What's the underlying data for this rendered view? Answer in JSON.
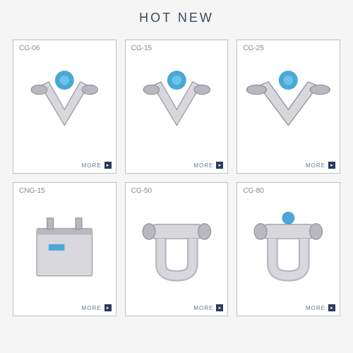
{
  "title": "HOT NEW",
  "more_label": "MORE",
  "colors": {
    "accent_blue": "#4aa8d8",
    "steel_light": "#d8d8dc",
    "steel_mid": "#b8b8c0",
    "steel_dark": "#909098",
    "border": "#c0c0c8",
    "text_muted": "#888888",
    "title_color": "#3a4a5a",
    "more_bg": "#2a3a5a"
  },
  "products": [
    {
      "label": "CG-06",
      "type": "v-sensor"
    },
    {
      "label": "CG-15",
      "type": "v-sensor"
    },
    {
      "label": "CG-25",
      "type": "v-sensor-wide"
    },
    {
      "label": "CNG-15",
      "type": "box"
    },
    {
      "label": "CG-50",
      "type": "u-sensor"
    },
    {
      "label": "CG-80",
      "type": "u-sensor-alt"
    }
  ]
}
